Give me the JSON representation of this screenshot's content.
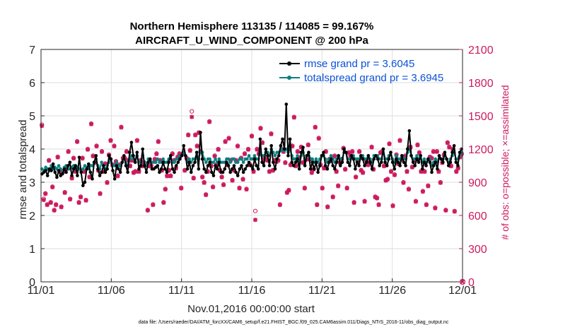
{
  "chart_data": {
    "type": "line",
    "title": "Northern Hemisphere 113135 / 114085 = 99.167%",
    "subtitle": "AIRCRAFT_U_WIND_COMPONENT @ 200 hPa",
    "xlabel": "Nov.01,2016 00:00:00 start",
    "ylabel": "rmse and totalspread",
    "ylabel_right": "# of obs: o=possible; ×=assimilated",
    "xlim": [
      0,
      30
    ],
    "ylim": [
      0,
      7
    ],
    "ylim_right": [
      0,
      2100
    ],
    "x_ticks": [
      0,
      5,
      10,
      15,
      20,
      25,
      30
    ],
    "x_tick_labels": [
      "11/01",
      "11/06",
      "11/11",
      "11/16",
      "11/21",
      "11/26",
      "12/01"
    ],
    "y_ticks": [
      0,
      1,
      2,
      3,
      4,
      5,
      6,
      7
    ],
    "y_ticks_right": [
      0,
      300,
      600,
      900,
      1200,
      1500,
      1800,
      2100
    ],
    "grid": true,
    "legend_position": "top-right",
    "footer": "data file: /Users/raeder/DAI/ATM_forcXX/CAM6_setup/f.e21.FHIST_BGC.f09_025.CAM6assim.011/Diags_NTrS_2016-11/obs_diag_output.nc",
    "series": [
      {
        "name": "rmse grand pr = 3.6045",
        "color": "#000000",
        "values": [
          3.25,
          3.3,
          3.35,
          3.2,
          3.4,
          3.35,
          3.55,
          3.3,
          3.15,
          3.35,
          3.2,
          3.25,
          3.4,
          3.3,
          3.5,
          3.6,
          3.2,
          3.4,
          3.5,
          3.2,
          3.75,
          3.3,
          2.9,
          3.0,
          3.4,
          3.55,
          3.3,
          3.1,
          3.6,
          3.8,
          3.4,
          3.2,
          3.3,
          3.5,
          3.3,
          3.4,
          3.8,
          3.7,
          3.35,
          3.1,
          3.5,
          3.4,
          3.3,
          3.6,
          3.8,
          3.5,
          3.3,
          3.9,
          4.2,
          3.8,
          3.6,
          3.9,
          3.4,
          3.5,
          4.0,
          3.5,
          3.3,
          3.6,
          3.7,
          3.4,
          3.4,
          3.45,
          3.5,
          3.3,
          3.4,
          3.6,
          3.4,
          3.3,
          3.6,
          3.8,
          3.4,
          3.3,
          3.5,
          3.6,
          3.7,
          3.8,
          4.1,
          3.8,
          3.4,
          3.6,
          3.3,
          3.5,
          3.6,
          3.9,
          3.4,
          4.5,
          3.7,
          3.4,
          3.3,
          3.5,
          3.6,
          3.3,
          3.2,
          3.5,
          3.4,
          3.6,
          3.3,
          3.3,
          3.4,
          3.6,
          3.5,
          3.3,
          3.4,
          3.5,
          3.3,
          3.2,
          3.4,
          3.5,
          3.3,
          3.4,
          3.5,
          3.6,
          3.5,
          3.4,
          3.7,
          3.5,
          3.4,
          4.3,
          3.6,
          3.5,
          4.0,
          3.8,
          3.5,
          4.1,
          3.6,
          3.4,
          3.7,
          3.8,
          4.1,
          4.3,
          4.0,
          5.35,
          3.8,
          4.3,
          3.6,
          3.5,
          3.6,
          3.7,
          3.4,
          3.9,
          4.05,
          3.5,
          3.8,
          3.9,
          3.4,
          3.6,
          3.4,
          3.6,
          3.3,
          3.5,
          3.8,
          3.9,
          3.5,
          3.4,
          3.6,
          3.7,
          3.5,
          3.4,
          3.6,
          3.8,
          3.5,
          3.6,
          4.0,
          3.9,
          3.6,
          3.5,
          3.8,
          3.7,
          3.4,
          3.6,
          3.5,
          3.8,
          3.7,
          3.5,
          3.6,
          3.8,
          3.6,
          3.4,
          3.7,
          3.8,
          3.7,
          3.5,
          3.6,
          4.0,
          3.6,
          3.5,
          3.7,
          3.9,
          3.6,
          3.4,
          3.7,
          3.6,
          3.5,
          3.8,
          3.6,
          3.5,
          4.0,
          4.55,
          3.8,
          3.6,
          3.5,
          3.7,
          3.6,
          3.8,
          3.4,
          3.6,
          3.5,
          3.7,
          3.6,
          3.3,
          3.5,
          3.6,
          3.4,
          3.8,
          3.7,
          3.6,
          3.9,
          3.7,
          3.5,
          3.6,
          3.9,
          4.1,
          3.6,
          3.5,
          3.9,
          4.0
        ]
      },
      {
        "name": "totalspread grand pr = 3.6945",
        "color": "#0f7f80",
        "values": [
          3.4,
          3.35,
          3.45,
          3.4,
          3.35,
          3.5,
          3.4,
          3.45,
          3.4,
          3.5,
          3.4,
          3.35,
          3.45,
          3.5,
          3.4,
          3.4,
          3.45,
          3.5,
          3.4,
          3.45,
          3.4,
          3.35,
          3.4,
          3.5,
          3.45,
          3.4,
          3.5,
          3.5,
          3.6,
          3.7,
          3.5,
          3.4,
          3.6,
          3.5,
          3.4,
          3.5,
          3.6,
          3.7,
          3.5,
          3.5,
          3.6,
          3.5,
          3.5,
          3.6,
          3.7,
          3.6,
          3.5,
          3.7,
          3.8,
          3.7,
          3.6,
          3.8,
          3.6,
          3.6,
          3.8,
          3.6,
          3.5,
          3.7,
          3.7,
          3.6,
          3.6,
          3.6,
          3.7,
          3.6,
          3.6,
          3.7,
          3.6,
          3.6,
          3.7,
          3.8,
          3.6,
          3.6,
          3.7,
          3.7,
          3.8,
          3.8,
          3.9,
          3.8,
          3.6,
          3.7,
          3.6,
          3.7,
          3.7,
          3.9,
          3.7,
          3.9,
          3.9,
          3.7,
          3.6,
          3.7,
          3.7,
          3.6,
          3.6,
          3.7,
          3.6,
          3.7,
          3.6,
          3.6,
          3.6,
          3.7,
          3.7,
          3.6,
          3.7,
          3.7,
          3.6,
          3.6,
          3.7,
          3.7,
          3.6,
          3.7,
          3.7,
          3.8,
          3.7,
          3.7,
          3.8,
          3.7,
          3.7,
          3.9,
          3.8,
          3.8,
          3.9,
          3.9,
          3.8,
          4.0,
          3.9,
          3.8,
          3.9,
          3.9,
          3.95,
          4.0,
          3.95,
          4.0,
          3.9,
          4.0,
          3.8,
          3.7,
          3.7,
          3.8,
          3.6,
          3.8,
          3.9,
          3.7,
          3.8,
          3.9,
          3.7,
          3.7,
          3.6,
          3.7,
          3.6,
          3.7,
          3.8,
          3.8,
          3.7,
          3.6,
          3.7,
          3.8,
          3.7,
          3.6,
          3.7,
          3.8,
          3.7,
          3.7,
          3.9,
          3.9,
          3.7,
          3.7,
          3.8,
          3.8,
          3.7,
          3.7,
          3.7,
          3.8,
          3.8,
          3.7,
          3.7,
          3.8,
          3.7,
          3.6,
          3.8,
          3.8,
          3.8,
          3.7,
          3.7,
          4.0,
          3.7,
          3.7,
          3.8,
          3.9,
          3.7,
          3.6,
          3.8,
          3.7,
          3.7,
          3.8,
          3.7,
          3.7,
          3.9,
          4.0,
          3.8,
          3.7,
          3.7,
          3.8,
          3.7,
          3.8,
          3.6,
          3.7,
          3.6,
          3.7,
          3.7,
          3.5,
          3.6,
          3.7,
          3.6,
          3.8,
          3.7,
          3.7,
          3.8,
          3.7,
          3.6,
          3.7,
          3.8,
          3.9,
          3.7,
          3.7,
          3.8,
          3.9
        ]
      },
      {
        "name": "obs possible",
        "axis": "right",
        "marker": "o",
        "color": "#cc1a5e",
        "values": [
          1420,
          750,
          800,
          700,
          1100,
          720,
          860,
          650,
          700,
          1130,
          1000,
          680,
          1000,
          810,
          1040,
          1180,
          750,
          940,
          1120,
          1000,
          1270,
          720,
          770,
          1120,
          1000,
          740,
          1200,
          950,
          1430,
          1140,
          1080,
          1230,
          1010,
          800,
          1180,
          1000,
          1070,
          900,
          1150,
          1280,
          1060,
          1230,
          1090,
          960,
          1060,
          1400,
          1120,
          1120,
          1180,
          1100,
          1050,
          1100,
          990,
          1000,
          1280,
          1000,
          1100,
          1050,
          1080,
          1060,
          650,
          1050,
          1050,
          700,
          1110,
          1160,
          1270,
          1100,
          1010,
          720,
          840,
          960,
          1010,
          960,
          1160,
          1100,
          1030,
          1130,
          1160,
          850,
          1160,
          1010,
          1120,
          1330,
          1190,
          1540,
          940,
          1330,
          1230,
          1350,
          1180,
          950,
          900,
          790,
          1000,
          1450,
          1050,
          860,
          1140,
          1060,
          1200,
          1010,
          950,
          880,
          1270,
          1060,
          1300,
          1100,
          920,
          1010,
          1100,
          1230,
          850,
          1120,
          930,
          1160,
          840,
          1200,
          1060,
          1320,
          1000,
          640,
          1200,
          1160,
          1390,
          1260,
          1110,
          1110,
          1100,
          1000,
          1340,
          1010,
          1100,
          1090,
          1100,
          700,
          1200,
          1180,
          1080,
          810,
          830,
          1060,
          1230,
          1490,
          1050,
          1180,
          1120,
          1220,
          1080,
          850,
          1110,
          1240,
          1110,
          990,
          1020,
          1400,
          700,
          1300,
          1060,
          850,
          1030,
          1180,
          680,
          1110,
          1100,
          770,
          1140,
          1000,
          870,
          1080,
          1110,
          1210,
          1020,
          850,
          1170,
          1140,
          1180,
          720,
          950,
          1100,
          1180,
          1010,
          990,
          730,
          1100,
          1060,
          1080,
          1220,
          1020,
          770,
          760,
          700,
          1170,
          1180,
          1050,
          920,
          930,
          1250,
          1000,
          690,
          970,
          1150,
          1070,
          1280,
          1110,
          900,
          1140,
          1000,
          840,
          1220,
          1040,
          1100,
          730,
          1240,
          1170,
          1000,
          820,
          1000,
          700,
          870,
          1130,
          1120,
          1180,
          670,
          1180,
          1000,
          900,
          1080,
          1150,
          650,
          1260,
          1220,
          1050,
          1200,
          640,
          1000,
          1030,
          1130,
          1160
        ]
      },
      {
        "name": "obs assimilated",
        "axis": "right",
        "marker": "x",
        "color": "#cc1a5e",
        "values": [
          1410,
          740,
          795,
          695,
          1095,
          715,
          855,
          645,
          695,
          1125,
          995,
          675,
          995,
          805,
          1035,
          1175,
          745,
          935,
          1115,
          995,
          1265,
          715,
          765,
          1115,
          995,
          735,
          1195,
          945,
          1425,
          1135,
          1075,
          1225,
          1005,
          795,
          1175,
          995,
          1065,
          895,
          1145,
          1275,
          1055,
          1225,
          1085,
          955,
          1055,
          1395,
          1115,
          1115,
          1175,
          1095,
          1045,
          1095,
          985,
          995,
          1275,
          995,
          1095,
          1045,
          1075,
          1055,
          645,
          1045,
          1045,
          695,
          1105,
          1155,
          1265,
          1095,
          1005,
          715,
          835,
          955,
          1005,
          955,
          1155,
          1095,
          1025,
          1125,
          1155,
          845,
          1155,
          1005,
          1115,
          1325,
          1185,
          1490,
          935,
          1325,
          1225,
          1345,
          1175,
          945,
          895,
          785,
          995,
          1445,
          1045,
          855,
          1135,
          1055,
          1195,
          1005,
          945,
          875,
          1265,
          1055,
          1295,
          1095,
          915,
          1005,
          1095,
          1225,
          845,
          1115,
          925,
          1155,
          835,
          1195,
          1055,
          1315,
          995,
          560,
          1195,
          1155,
          1385,
          1255,
          1105,
          1105,
          1095,
          995,
          1335,
          1005,
          1095,
          1085,
          1095,
          695,
          1195,
          1175,
          1075,
          805,
          825,
          1055,
          1225,
          1485,
          1045,
          1175,
          1115,
          1215,
          1075,
          845,
          1105,
          1235,
          1105,
          985,
          1015,
          1395,
          695,
          1295,
          1055,
          845,
          1025,
          1175,
          675,
          1105,
          1095,
          765,
          1135,
          995,
          865,
          1075,
          1105,
          1205,
          1015,
          845,
          1165,
          1135,
          1175,
          715,
          945,
          1095,
          1175,
          1005,
          985,
          725,
          1095,
          1055,
          1075,
          1215,
          1015,
          765,
          755,
          695,
          1165,
          1175,
          1045,
          915,
          925,
          1245,
          995,
          685,
          965,
          1145,
          1065,
          1275,
          1105,
          895,
          1135,
          995,
          835,
          1215,
          1035,
          1095,
          725,
          1235,
          1165,
          995,
          815,
          995,
          695,
          865,
          1125,
          1115,
          1175,
          665,
          1175,
          995,
          895,
          1075,
          1145,
          645,
          1255,
          1215,
          1045,
          1195,
          635,
          995,
          1025,
          1125,
          1155
        ]
      }
    ],
    "end_markers": {
      "x": 30,
      "possible": 0,
      "assimilated": 0
    }
  }
}
